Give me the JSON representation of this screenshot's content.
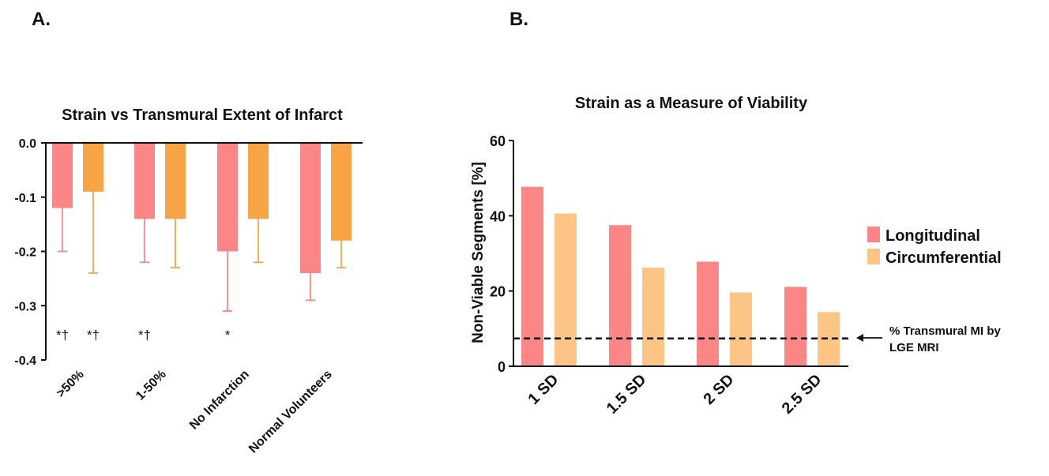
{
  "panels": {
    "a_label": "A.",
    "b_label": "B."
  },
  "colors": {
    "longitudinal": "#fc8585",
    "circumferential_a": "#f8a444",
    "circumferential_b": "#fcc586",
    "axis": "#111111"
  },
  "chart_data": [
    {
      "type": "bar",
      "title": "Strain vs Transmural Extent of Infarct",
      "categories": [
        ">50%",
        "1-50%",
        "No Infarction",
        "Normal Volunteers"
      ],
      "series": [
        {
          "values": [
            -0.12,
            -0.14,
            -0.2,
            -0.24
          ],
          "error": [
            0.08,
            0.08,
            0.11,
            0.05
          ],
          "color": "#fc8585"
        },
        {
          "values": [
            -0.09,
            -0.14,
            -0.14,
            -0.18
          ],
          "error": [
            0.15,
            0.09,
            0.08,
            0.05
          ],
          "color": "#f8a444"
        }
      ],
      "significance": [
        [
          "*†",
          "*†"
        ],
        [
          "*†",
          ""
        ],
        [
          "*",
          ""
        ],
        [
          "",
          ""
        ]
      ],
      "ylim": [
        -0.4,
        0.0
      ],
      "yticks": [
        "0.0",
        "-0.1",
        "-0.2",
        "-0.3",
        "-0.4"
      ],
      "ytick_values": [
        0.0,
        -0.1,
        -0.2,
        -0.3,
        -0.4
      ],
      "grid": false,
      "legend": false
    },
    {
      "type": "bar",
      "title": "Strain as a Measure of Viability",
      "categories": [
        "1 SD",
        "1.5 SD",
        "2 SD",
        "2.5 SD"
      ],
      "series": [
        {
          "name": "Longitudinal",
          "values": [
            47.7,
            37.5,
            27.8,
            21.1
          ],
          "color": "#fc8585"
        },
        {
          "name": "Circumferential",
          "values": [
            40.6,
            26.2,
            19.6,
            14.4
          ],
          "color": "#fcc586"
        }
      ],
      "ylabel": "Non-Viable Segments [%]",
      "ylim": [
        0,
        60
      ],
      "yticks": [
        "0",
        "20",
        "40",
        "60"
      ],
      "ytick_values": [
        0,
        20,
        40,
        60
      ],
      "reference_line": {
        "value": 7.4,
        "style": "dashed",
        "label_lines": [
          "% Transmural MI by",
          "LGE MRI"
        ]
      },
      "grid": false,
      "legend": "right"
    }
  ]
}
